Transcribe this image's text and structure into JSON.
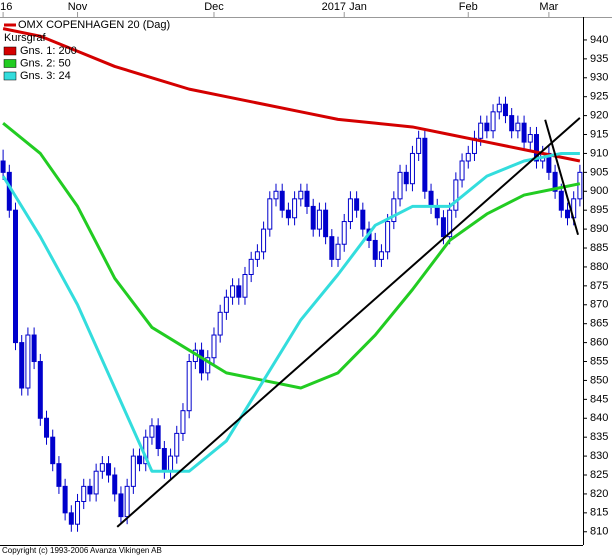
{
  "chart_data": {
    "type": "candlestick",
    "title": "OMX COPENHAGEN 20 (Dag)",
    "candle_label": "Kursgraf",
    "copyright": "Copyright (c) 1993-2006 Avanza Vikingen AB",
    "xlim": [
      -0.5,
      93.5
    ],
    "xticks": [
      {
        "value": 0,
        "label": "16"
      },
      {
        "value": 12,
        "label": "Nov"
      },
      {
        "value": 34,
        "label": "Dec"
      },
      {
        "value": 55,
        "label": "2017 Jan"
      },
      {
        "value": 75,
        "label": "Feb"
      },
      {
        "value": 88,
        "label": "Mar"
      }
    ],
    "ylim": [
      806.5,
      945.8
    ],
    "yticks": [
      810,
      815,
      820,
      825,
      830,
      835,
      840,
      845,
      850,
      855,
      860,
      865,
      870,
      875,
      880,
      885,
      890,
      895,
      900,
      905,
      910,
      915,
      920,
      925,
      930,
      935,
      940
    ],
    "candles": {
      "color": "#0000cc",
      "open": [
        908,
        905,
        895,
        860,
        848,
        862,
        855,
        840,
        835,
        828,
        822,
        815,
        812,
        818,
        822,
        820,
        826,
        828,
        825,
        820,
        814,
        822,
        830,
        828,
        835,
        838,
        832,
        826,
        830,
        836,
        842,
        855,
        858,
        852,
        856,
        862,
        868,
        872,
        875,
        872,
        878,
        882,
        884,
        890,
        898,
        900,
        895,
        893,
        898,
        900,
        896,
        890,
        895,
        888,
        882,
        886,
        892,
        898,
        895,
        890,
        887,
        882,
        884,
        892,
        898,
        905,
        902,
        910,
        914,
        900,
        896,
        893,
        888,
        895,
        903,
        908,
        910,
        914,
        918,
        916,
        921,
        923,
        920,
        916,
        918,
        913,
        915,
        908,
        910,
        905,
        900,
        895,
        893,
        898
      ],
      "high": [
        911,
        907,
        897,
        862,
        864,
        864,
        857,
        842,
        837,
        830,
        824,
        817,
        820,
        824,
        824,
        828,
        830,
        830,
        827,
        822,
        824,
        832,
        832,
        837,
        840,
        840,
        834,
        832,
        838,
        844,
        857,
        860,
        860,
        858,
        864,
        870,
        874,
        877,
        877,
        880,
        884,
        886,
        892,
        900,
        902,
        902,
        897,
        900,
        902,
        902,
        898,
        897,
        897,
        890,
        888,
        894,
        900,
        900,
        897,
        892,
        889,
        886,
        894,
        900,
        907,
        907,
        912,
        916,
        916,
        902,
        898,
        895,
        897,
        905,
        910,
        912,
        916,
        920,
        920,
        923,
        925,
        925,
        922,
        920,
        920,
        917,
        917,
        912,
        912,
        907,
        902,
        897,
        900,
        907
      ],
      "low": [
        903,
        893,
        858,
        846,
        846,
        853,
        838,
        833,
        826,
        820,
        813,
        810,
        810,
        816,
        818,
        818,
        824,
        823,
        818,
        812,
        812,
        820,
        826,
        826,
        833,
        830,
        824,
        824,
        828,
        834,
        840,
        853,
        850,
        850,
        854,
        860,
        866,
        870,
        870,
        870,
        876,
        880,
        882,
        888,
        896,
        893,
        891,
        891,
        896,
        894,
        888,
        888,
        886,
        880,
        880,
        884,
        890,
        893,
        888,
        885,
        880,
        880,
        882,
        890,
        896,
        900,
        900,
        908,
        898,
        894,
        891,
        886,
        886,
        893,
        901,
        906,
        908,
        912,
        914,
        914,
        919,
        918,
        914,
        914,
        911,
        911,
        906,
        906,
        903,
        898,
        893,
        891,
        891,
        896
      ],
      "close": [
        905,
        895,
        860,
        848,
        862,
        855,
        840,
        835,
        828,
        822,
        815,
        812,
        818,
        822,
        820,
        826,
        828,
        825,
        820,
        814,
        822,
        830,
        828,
        835,
        838,
        832,
        826,
        830,
        836,
        842,
        855,
        858,
        852,
        856,
        862,
        868,
        872,
        875,
        872,
        878,
        882,
        884,
        890,
        898,
        900,
        895,
        893,
        898,
        900,
        896,
        890,
        895,
        888,
        882,
        886,
        892,
        898,
        895,
        890,
        887,
        882,
        884,
        892,
        898,
        905,
        902,
        910,
        914,
        900,
        896,
        893,
        888,
        895,
        903,
        908,
        910,
        914,
        918,
        916,
        921,
        923,
        920,
        916,
        918,
        913,
        915,
        908,
        910,
        905,
        900,
        895,
        893,
        898,
        905
      ]
    },
    "series": [
      {
        "name": "Gns. 1: 200",
        "color": "#d40000",
        "x": [
          0,
          6,
          12,
          18,
          24,
          30,
          36,
          42,
          48,
          54,
          60,
          66,
          72,
          78,
          84,
          90,
          93
        ],
        "values": [
          943,
          941,
          937,
          933,
          930,
          927,
          925,
          923,
          921,
          919,
          918,
          917,
          915,
          913,
          911,
          909,
          908
        ]
      },
      {
        "name": "Gns. 2: 50",
        "color": "#22cc22",
        "x": [
          0,
          6,
          12,
          18,
          24,
          30,
          36,
          42,
          48,
          54,
          60,
          66,
          72,
          78,
          84,
          90,
          93
        ],
        "values": [
          918,
          910,
          896,
          877,
          864,
          858,
          852,
          850,
          848,
          852,
          862,
          874,
          887,
          894,
          899,
          901,
          902
        ]
      },
      {
        "name": "Gns. 3: 24",
        "color": "#33dddd",
        "x": [
          0,
          6,
          12,
          18,
          24,
          30,
          36,
          42,
          48,
          54,
          60,
          66,
          72,
          78,
          84,
          90,
          93
        ],
        "values": [
          904,
          888,
          870,
          848,
          826,
          826,
          834,
          850,
          866,
          878,
          891,
          896,
          896,
          904,
          908,
          910,
          910
        ]
      }
    ],
    "trendlines": {
      "color": "#000000",
      "lines": [
        {
          "x": [
            18.4,
            93
          ],
          "values": [
            811.3,
            919.4
          ]
        },
        {
          "x": [
            87.4,
            92.7
          ],
          "values": [
            918.9,
            888.5
          ]
        }
      ]
    }
  }
}
